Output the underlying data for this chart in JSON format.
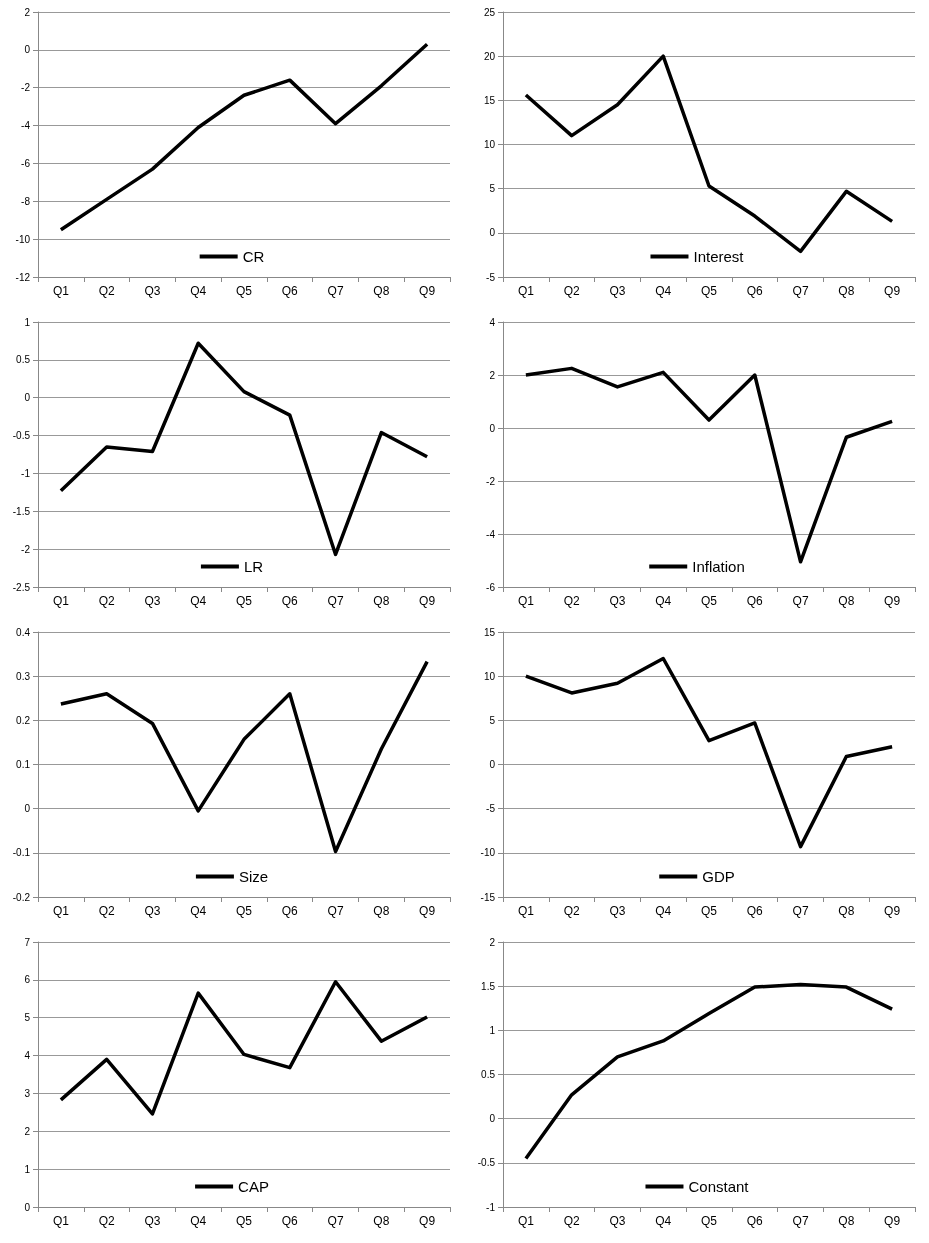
{
  "chart_data": [
    {
      "type": "line",
      "categories": [
        "Q1",
        "Q2",
        "Q3",
        "Q4",
        "Q5",
        "Q6",
        "Q7",
        "Q8",
        "Q9"
      ],
      "series": [
        {
          "name": "CR",
          "color": "#000000",
          "values": [
            -9.5,
            -7.9,
            -6.3,
            -4.1,
            -2.4,
            -1.6,
            -3.9,
            -1.9,
            0.3
          ]
        }
      ],
      "ylim": [
        -12,
        2
      ],
      "yticks": [
        -12,
        -10,
        -8,
        -6,
        -4,
        -2,
        0,
        2
      ],
      "grid": "y",
      "legend": "bottom"
    },
    {
      "type": "line",
      "categories": [
        "Q1",
        "Q2",
        "Q3",
        "Q4",
        "Q5",
        "Q6",
        "Q7",
        "Q8",
        "Q9"
      ],
      "series": [
        {
          "name": "Interest",
          "color": "#000000",
          "values": [
            15.6,
            11.0,
            14.5,
            20.0,
            5.3,
            1.9,
            -2.1,
            4.7,
            1.3
          ]
        }
      ],
      "ylim": [
        -5,
        25
      ],
      "yticks": [
        -5,
        0,
        5,
        10,
        15,
        20,
        25
      ],
      "grid": "y",
      "legend": "bottom"
    },
    {
      "type": "line",
      "categories": [
        "Q1",
        "Q2",
        "Q3",
        "Q4",
        "Q5",
        "Q6",
        "Q7",
        "Q8",
        "Q9"
      ],
      "series": [
        {
          "name": "LR",
          "color": "#000000",
          "values": [
            -1.23,
            -0.65,
            -0.71,
            0.72,
            0.08,
            -0.23,
            -2.07,
            -0.46,
            -0.78
          ]
        }
      ],
      "ylim": [
        -2.5,
        1
      ],
      "yticks": [
        -2.5,
        -2,
        -1.5,
        -1,
        -0.5,
        0,
        0.5,
        1
      ],
      "grid": "y",
      "legend": "bottom"
    },
    {
      "type": "line",
      "categories": [
        "Q1",
        "Q2",
        "Q3",
        "Q4",
        "Q5",
        "Q6",
        "Q7",
        "Q8",
        "Q9"
      ],
      "series": [
        {
          "name": "Inflation",
          "color": "#000000",
          "values": [
            2.0,
            2.25,
            1.55,
            2.1,
            0.3,
            2.0,
            -5.05,
            -0.35,
            0.25
          ]
        }
      ],
      "ylim": [
        -6,
        4
      ],
      "yticks": [
        -6,
        -4,
        -2,
        0,
        2,
        4
      ],
      "grid": "y",
      "legend": "bottom"
    },
    {
      "type": "line",
      "categories": [
        "Q1",
        "Q2",
        "Q3",
        "Q4",
        "Q5",
        "Q6",
        "Q7",
        "Q8",
        "Q9"
      ],
      "series": [
        {
          "name": "Size",
          "color": "#000000",
          "values": [
            0.237,
            0.26,
            0.193,
            -0.005,
            0.157,
            0.26,
            -0.097,
            0.135,
            0.333
          ]
        }
      ],
      "ylim": [
        -0.2,
        0.4
      ],
      "yticks": [
        -0.2,
        -0.1,
        0,
        0.1,
        0.2,
        0.3,
        0.4
      ],
      "grid": "y",
      "legend": "bottom"
    },
    {
      "type": "line",
      "categories": [
        "Q1",
        "Q2",
        "Q3",
        "Q4",
        "Q5",
        "Q6",
        "Q7",
        "Q8",
        "Q9"
      ],
      "series": [
        {
          "name": "GDP",
          "color": "#000000",
          "values": [
            10.0,
            8.1,
            9.2,
            12.0,
            2.7,
            4.7,
            -9.3,
            0.9,
            2.0
          ]
        }
      ],
      "ylim": [
        -15,
        15
      ],
      "yticks": [
        -15,
        -10,
        -5,
        0,
        5,
        10,
        15
      ],
      "grid": "y",
      "legend": "bottom"
    },
    {
      "type": "line",
      "categories": [
        "Q1",
        "Q2",
        "Q3",
        "Q4",
        "Q5",
        "Q6",
        "Q7",
        "Q8",
        "Q9"
      ],
      "series": [
        {
          "name": "CAP",
          "color": "#000000",
          "values": [
            2.83,
            3.9,
            2.46,
            5.65,
            4.03,
            3.68,
            5.95,
            4.38,
            5.02
          ]
        }
      ],
      "ylim": [
        0,
        7
      ],
      "yticks": [
        0,
        1,
        2,
        3,
        4,
        5,
        6,
        7
      ],
      "grid": "y",
      "legend": "bottom"
    },
    {
      "type": "line",
      "categories": [
        "Q1",
        "Q2",
        "Q3",
        "Q4",
        "Q5",
        "Q6",
        "Q7",
        "Q8",
        "Q9"
      ],
      "series": [
        {
          "name": "Constant",
          "color": "#000000",
          "values": [
            -0.45,
            0.27,
            0.7,
            0.88,
            1.19,
            1.49,
            1.52,
            1.49,
            1.24
          ]
        }
      ],
      "ylim": [
        -1,
        2
      ],
      "yticks": [
        -1,
        -0.5,
        0,
        0.5,
        1,
        1.5,
        2
      ],
      "grid": "y",
      "legend": "bottom"
    }
  ]
}
